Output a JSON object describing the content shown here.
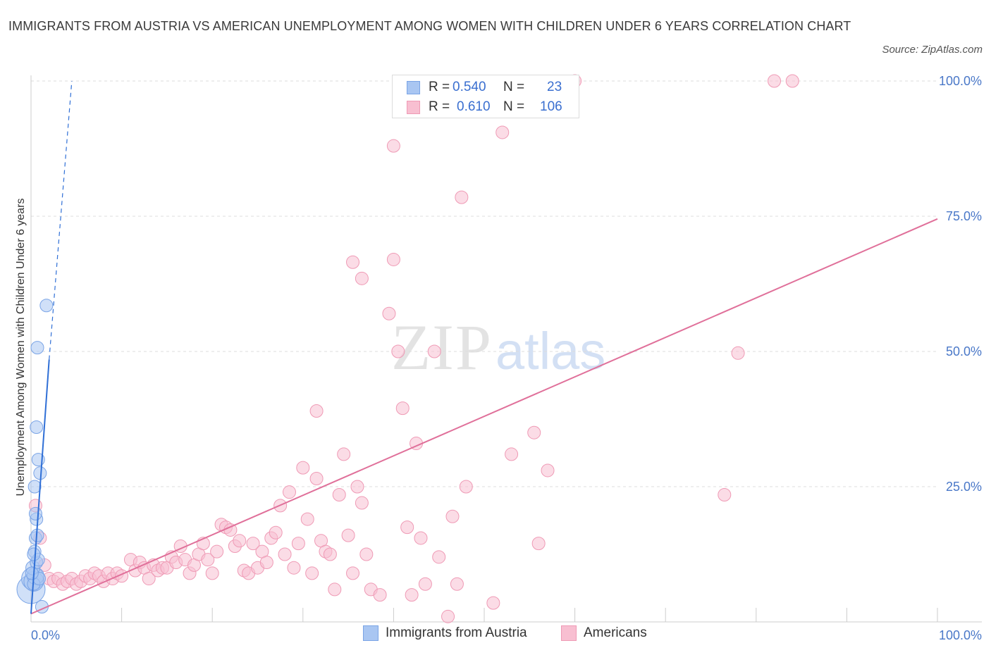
{
  "header": {
    "title": "IMMIGRANTS FROM AUSTRIA VS AMERICAN UNEMPLOYMENT AMONG WOMEN WITH CHILDREN UNDER 6 YEARS CORRELATION CHART",
    "source": "Source: ZipAtlas.com"
  },
  "watermark": {
    "zip": "ZIP",
    "atlas": "atlas"
  },
  "legend": {
    "rows": [
      {
        "r_label": "R =",
        "r_value": "0.540",
        "n_label": "N =",
        "n_value": "23"
      },
      {
        "r_label": "R =",
        "r_value": "0.610",
        "n_label": "N =",
        "n_value": "106"
      }
    ]
  },
  "bottom_legend": {
    "austria": "Immigrants from Austria",
    "americans": "Americans"
  },
  "colors": {
    "austria_fill": "#a9c6f2",
    "austria_stroke": "#7aa4e6",
    "austria_line": "#2f6fd6",
    "americans_fill": "#f8bfd1",
    "americans_stroke": "#ef9ab5",
    "americans_line": "#e0709a",
    "grid": "#dddddd",
    "tick_text": "#4a78c8"
  },
  "chart_data": {
    "type": "scatter",
    "title": "IMMIGRANTS FROM AUSTRIA VS AMERICAN UNEMPLOYMENT AMONG WOMEN WITH CHILDREN UNDER 6 YEARS CORRELATION CHART",
    "xlabel": "",
    "ylabel": "Unemployment Among Women with Children Under 6 years",
    "xlim": [
      0,
      100
    ],
    "ylim": [
      0,
      100
    ],
    "x_ticks": [
      "0.0%",
      "100.0%"
    ],
    "y_ticks": [
      {
        "value": 25,
        "label": "25.0%"
      },
      {
        "value": 50,
        "label": "50.0%"
      },
      {
        "value": 75,
        "label": "75.0%"
      },
      {
        "value": 100,
        "label": "100.0%"
      }
    ],
    "grid": true,
    "series": [
      {
        "name": "Immigrants from Austria",
        "R": 0.54,
        "N": 23,
        "trendline": {
          "x": [
            0,
            2
          ],
          "y": [
            1.5,
            48.5
          ]
        },
        "trendline_dashed": {
          "x": [
            2,
            4.5
          ],
          "y": [
            48.5,
            100
          ]
        },
        "points": [
          {
            "x": 0.0,
            "y": 6.0,
            "s": 20
          },
          {
            "x": 0.2,
            "y": 8.0,
            "s": 16
          },
          {
            "x": 0.3,
            "y": 7.5,
            "s": 14
          },
          {
            "x": 0.5,
            "y": 8.5,
            "s": 12
          },
          {
            "x": 0.2,
            "y": 10.0,
            "s": 10
          },
          {
            "x": 0.6,
            "y": 11.0,
            "s": 9
          },
          {
            "x": 0.4,
            "y": 13.0,
            "s": 9
          },
          {
            "x": 0.5,
            "y": 15.5,
            "s": 9
          },
          {
            "x": 0.7,
            "y": 16.0,
            "s": 9
          },
          {
            "x": 0.6,
            "y": 19.0,
            "s": 9
          },
          {
            "x": 0.5,
            "y": 20.0,
            "s": 9
          },
          {
            "x": 0.4,
            "y": 25.0,
            "s": 9
          },
          {
            "x": 1.0,
            "y": 27.5,
            "s": 9
          },
          {
            "x": 0.8,
            "y": 30.0,
            "s": 9
          },
          {
            "x": 0.6,
            "y": 36.0,
            "s": 9
          },
          {
            "x": 0.7,
            "y": 50.7,
            "s": 9
          },
          {
            "x": 1.7,
            "y": 58.5,
            "s": 9
          },
          {
            "x": 1.2,
            "y": 2.8,
            "s": 9
          },
          {
            "x": 0.3,
            "y": 7.0,
            "s": 9
          },
          {
            "x": 0.9,
            "y": 8.0,
            "s": 9
          },
          {
            "x": 0.1,
            "y": 9.0,
            "s": 9
          },
          {
            "x": 0.8,
            "y": 11.5,
            "s": 9
          },
          {
            "x": 0.3,
            "y": 12.5,
            "s": 9
          }
        ]
      },
      {
        "name": "Americans",
        "R": 0.61,
        "N": 106,
        "trendline": {
          "x": [
            0,
            100
          ],
          "y": [
            1.5,
            74.5
          ]
        },
        "points": [
          {
            "x": 0.5,
            "y": 21.5
          },
          {
            "x": 1.0,
            "y": 15.5
          },
          {
            "x": 1.5,
            "y": 10.5
          },
          {
            "x": 2.0,
            "y": 8.0
          },
          {
            "x": 2.5,
            "y": 7.5
          },
          {
            "x": 3.0,
            "y": 8.0
          },
          {
            "x": 3.5,
            "y": 7.0
          },
          {
            "x": 4.0,
            "y": 7.5
          },
          {
            "x": 4.5,
            "y": 8.0
          },
          {
            "x": 5.0,
            "y": 7.0
          },
          {
            "x": 5.5,
            "y": 7.5
          },
          {
            "x": 6.0,
            "y": 8.5
          },
          {
            "x": 6.5,
            "y": 8.0
          },
          {
            "x": 7.0,
            "y": 9.0
          },
          {
            "x": 7.5,
            "y": 8.5
          },
          {
            "x": 8.0,
            "y": 7.5
          },
          {
            "x": 8.5,
            "y": 9.0
          },
          {
            "x": 9.0,
            "y": 8.0
          },
          {
            "x": 9.5,
            "y": 9.0
          },
          {
            "x": 10.0,
            "y": 8.5
          },
          {
            "x": 11.0,
            "y": 11.5
          },
          {
            "x": 11.5,
            "y": 9.5
          },
          {
            "x": 12.0,
            "y": 11.0
          },
          {
            "x": 12.5,
            "y": 10.0
          },
          {
            "x": 13.0,
            "y": 8.0
          },
          {
            "x": 13.5,
            "y": 10.5
          },
          {
            "x": 14.0,
            "y": 9.5
          },
          {
            "x": 14.5,
            "y": 10.0
          },
          {
            "x": 15.0,
            "y": 10.0
          },
          {
            "x": 15.5,
            "y": 12.0
          },
          {
            "x": 16.0,
            "y": 11.0
          },
          {
            "x": 16.5,
            "y": 14.0
          },
          {
            "x": 17.0,
            "y": 11.5
          },
          {
            "x": 17.5,
            "y": 9.0
          },
          {
            "x": 18.0,
            "y": 10.5
          },
          {
            "x": 18.5,
            "y": 12.5
          },
          {
            "x": 19.0,
            "y": 14.5
          },
          {
            "x": 19.5,
            "y": 11.5
          },
          {
            "x": 20.0,
            "y": 9.0
          },
          {
            "x": 20.5,
            "y": 13.0
          },
          {
            "x": 21.0,
            "y": 18.0
          },
          {
            "x": 21.5,
            "y": 17.5
          },
          {
            "x": 22.0,
            "y": 17.0
          },
          {
            "x": 22.5,
            "y": 14.0
          },
          {
            "x": 23.0,
            "y": 15.0
          },
          {
            "x": 23.5,
            "y": 9.5
          },
          {
            "x": 24.0,
            "y": 9.0
          },
          {
            "x": 24.5,
            "y": 14.5
          },
          {
            "x": 25.0,
            "y": 10.0
          },
          {
            "x": 25.5,
            "y": 13.0
          },
          {
            "x": 26.0,
            "y": 11.0
          },
          {
            "x": 26.5,
            "y": 15.5
          },
          {
            "x": 27.0,
            "y": 16.5
          },
          {
            "x": 27.5,
            "y": 21.5
          },
          {
            "x": 28.0,
            "y": 12.5
          },
          {
            "x": 28.5,
            "y": 24.0
          },
          {
            "x": 29.0,
            "y": 10.0
          },
          {
            "x": 29.5,
            "y": 14.5
          },
          {
            "x": 30.0,
            "y": 28.5
          },
          {
            "x": 30.5,
            "y": 19.0
          },
          {
            "x": 31.0,
            "y": 9.0
          },
          {
            "x": 31.5,
            "y": 26.5
          },
          {
            "x": 32.0,
            "y": 15.0
          },
          {
            "x": 32.5,
            "y": 13.0
          },
          {
            "x": 33.0,
            "y": 12.5
          },
          {
            "x": 33.5,
            "y": 6.0
          },
          {
            "x": 34.0,
            "y": 23.5
          },
          {
            "x": 34.5,
            "y": 31.0
          },
          {
            "x": 35.0,
            "y": 16.0
          },
          {
            "x": 35.5,
            "y": 9.0
          },
          {
            "x": 36.0,
            "y": 25.0
          },
          {
            "x": 36.5,
            "y": 22.0
          },
          {
            "x": 37.0,
            "y": 12.5
          },
          {
            "x": 37.5,
            "y": 6.0
          },
          {
            "x": 38.5,
            "y": 5.0
          },
          {
            "x": 39.5,
            "y": 57.0
          },
          {
            "x": 40.0,
            "y": 88.0
          },
          {
            "x": 40.5,
            "y": 50.0
          },
          {
            "x": 41.0,
            "y": 39.5
          },
          {
            "x": 41.5,
            "y": 17.5
          },
          {
            "x": 42.0,
            "y": 5.0
          },
          {
            "x": 42.5,
            "y": 33.0
          },
          {
            "x": 43.0,
            "y": 15.5
          },
          {
            "x": 43.5,
            "y": 7.0
          },
          {
            "x": 44.5,
            "y": 50.0
          },
          {
            "x": 45.0,
            "y": 12.0
          },
          {
            "x": 46.0,
            "y": 1.0
          },
          {
            "x": 46.5,
            "y": 19.5
          },
          {
            "x": 47.0,
            "y": 7.0
          },
          {
            "x": 47.5,
            "y": 78.5
          },
          {
            "x": 48.0,
            "y": 25.0
          },
          {
            "x": 51.0,
            "y": 3.5
          },
          {
            "x": 52.0,
            "y": 90.5
          },
          {
            "x": 53.0,
            "y": 31.0
          },
          {
            "x": 55.5,
            "y": 35.0
          },
          {
            "x": 56.0,
            "y": 14.5
          },
          {
            "x": 57.0,
            "y": 28.0
          },
          {
            "x": 60.0,
            "y": 100.0
          },
          {
            "x": 76.5,
            "y": 23.5
          },
          {
            "x": 78.0,
            "y": 49.7
          },
          {
            "x": 82.0,
            "y": 100.0
          },
          {
            "x": 84.0,
            "y": 100.0
          },
          {
            "x": 35.5,
            "y": 66.5
          },
          {
            "x": 36.5,
            "y": 63.5
          },
          {
            "x": 40.0,
            "y": 67.0
          },
          {
            "x": 31.5,
            "y": 39.0
          }
        ]
      }
    ]
  }
}
